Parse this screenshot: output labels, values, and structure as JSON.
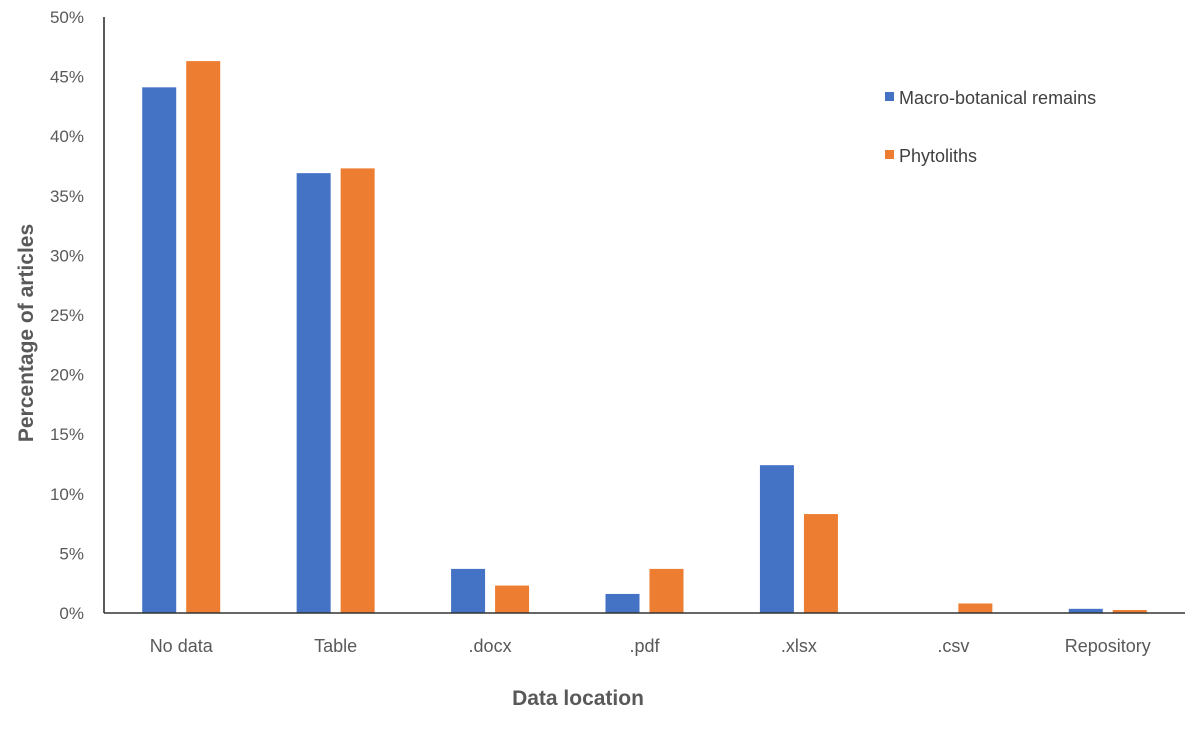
{
  "chart_data": {
    "type": "bar",
    "title": "",
    "xlabel": "Data location",
    "ylabel": "Percentage of articles",
    "ylim": [
      0,
      50
    ],
    "yticks": [
      "0%",
      "5%",
      "10%",
      "15%",
      "20%",
      "25%",
      "30%",
      "35%",
      "40%",
      "45%",
      "50%"
    ],
    "categories": [
      "No data",
      "Table",
      ".docx",
      ".pdf",
      ".xlsx",
      ".csv",
      "Repository"
    ],
    "series": [
      {
        "name": "Macro-botanical remains",
        "color": "#4472C4",
        "values": [
          44.1,
          36.9,
          3.7,
          1.6,
          12.4,
          0,
          0.35
        ]
      },
      {
        "name": "Phytoliths",
        "color": "#ED7D31",
        "values": [
          46.3,
          37.3,
          2.3,
          3.7,
          8.3,
          0.8,
          0.25
        ]
      }
    ],
    "legend_position": "top-right",
    "grid": false
  }
}
